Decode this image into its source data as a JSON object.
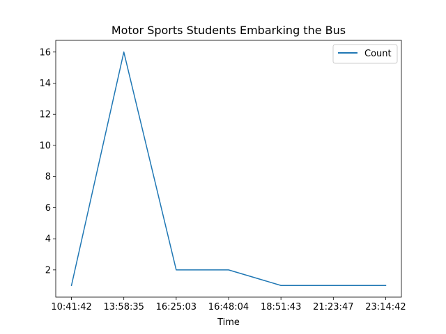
{
  "chart_data": {
    "type": "line",
    "title": "Motor Sports Students Embarking the Bus",
    "xlabel": "Time",
    "ylabel": "",
    "x": [
      "10:41:42",
      "13:58:35",
      "16:25:03",
      "16:48:04",
      "18:51:43",
      "21:23:47",
      "23:14:42"
    ],
    "series": [
      {
        "name": "Count",
        "values": [
          1,
          16,
          2,
          2,
          1,
          1,
          1
        ],
        "color": "#1f77b4"
      }
    ],
    "yticks": [
      2,
      4,
      6,
      8,
      10,
      12,
      14,
      16
    ],
    "ylim": [
      0.25,
      16.75
    ],
    "grid": false,
    "legend_position": "top-right"
  }
}
